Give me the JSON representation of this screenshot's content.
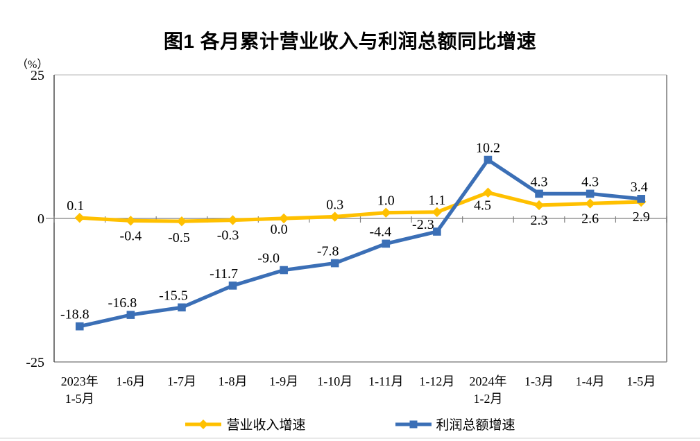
{
  "chart_data": {
    "type": "line",
    "title": "图1  各月累计营业收入与利润总额同比增速",
    "y_unit": "（%）",
    "y_ticks": [
      25,
      0,
      -25
    ],
    "ylim": [
      -25,
      25
    ],
    "grid": false,
    "legend_position": "bottom",
    "categories": [
      "2023年\n1-5月",
      "1-6月",
      "1-7月",
      "1-8月",
      "1-9月",
      "1-10月",
      "1-11月",
      "1-12月",
      "2024年\n1-2月",
      "1-3月",
      "1-4月",
      "1-5月"
    ],
    "series": [
      {
        "name": "营业收入增速",
        "color": "#FFC000",
        "marker": "diamond",
        "values": [
          0.1,
          -0.4,
          -0.5,
          -0.3,
          0.0,
          0.3,
          1.0,
          1.1,
          4.5,
          2.3,
          2.6,
          2.9
        ],
        "label_side": [
          "above",
          "below",
          "below",
          "below",
          "below",
          "above",
          "above",
          "above",
          "below",
          "below",
          "below",
          "below"
        ],
        "label_dx": [
          -6,
          0,
          -4,
          -7,
          -7,
          0,
          0,
          0,
          -8,
          0,
          0,
          0
        ],
        "label_dy": [
          0,
          0,
          2,
          0,
          -6,
          0,
          0,
          0,
          -3,
          0,
          0,
          0
        ]
      },
      {
        "name": "利润总额增速",
        "color": "#3B6FB6",
        "marker": "square",
        "values": [
          -18.8,
          -16.8,
          -15.5,
          -11.7,
          -9.0,
          -7.8,
          -4.4,
          -2.3,
          10.2,
          4.3,
          4.3,
          3.4
        ],
        "label_side": [
          "above",
          "above",
          "above",
          "above",
          "above",
          "above",
          "above",
          "above",
          "above",
          "above",
          "above",
          "above"
        ],
        "label_dx": [
          -7,
          -12,
          -12,
          -13,
          -22,
          -10,
          -8,
          -20,
          0,
          0,
          0,
          -3
        ],
        "label_dy": [
          0,
          0,
          0,
          0,
          0,
          0,
          0,
          7,
          0,
          0,
          0,
          0
        ]
      }
    ]
  }
}
